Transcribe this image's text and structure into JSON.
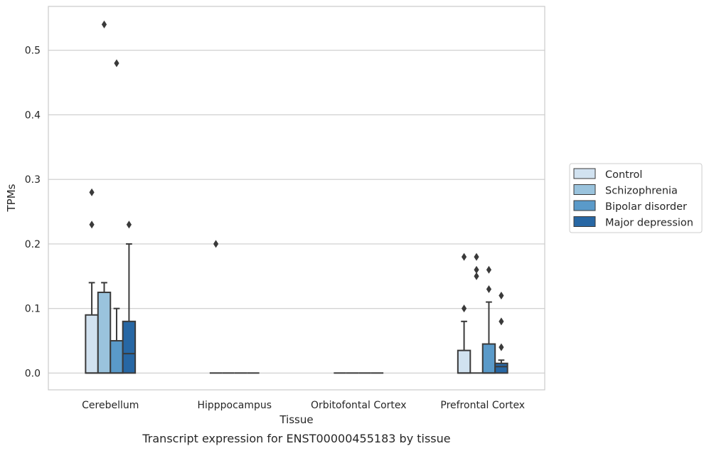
{
  "chart_data": {
    "type": "box",
    "title": "",
    "caption": "Transcript expression for ENST00000455183 by tissue",
    "xlabel": "Tissue",
    "ylabel": "TPMs",
    "ylim": [
      -0.026,
      0.568
    ],
    "yticks": [
      0.0,
      0.1,
      0.2,
      0.3,
      0.4,
      0.5
    ],
    "ytick_labels": [
      "0.0",
      "0.1",
      "0.2",
      "0.3",
      "0.4",
      "0.5"
    ],
    "grid": "horizontal",
    "legend_position": "right",
    "categories": [
      "Cerebellum",
      "Hipppocampus",
      "Orbitofontal Cortex",
      "Prefrontal Cortex"
    ],
    "series": [
      {
        "name": "Control",
        "color": "#d1e2f0",
        "boxes": [
          {
            "q1": 0.0,
            "median": 0.0,
            "q3": 0.09,
            "whisker_low": 0.0,
            "whisker_high": 0.14,
            "outliers": [
              0.23,
              0.28
            ]
          },
          {
            "q1": 0.0,
            "median": 0.0,
            "q3": 0.0,
            "whisker_low": 0.0,
            "whisker_high": 0.0,
            "outliers": [
              0.2
            ]
          },
          {
            "q1": 0.0,
            "median": 0.0,
            "q3": 0.0,
            "whisker_low": 0.0,
            "whisker_high": 0.0,
            "outliers": []
          },
          {
            "q1": 0.0,
            "median": 0.0,
            "q3": 0.035,
            "whisker_low": 0.0,
            "whisker_high": 0.08,
            "outliers": [
              0.1,
              0.18
            ]
          }
        ]
      },
      {
        "name": "Schizophrenia",
        "color": "#9ac3dd",
        "boxes": [
          {
            "q1": 0.0,
            "median": 0.0,
            "q3": 0.125,
            "whisker_low": 0.0,
            "whisker_high": 0.14,
            "outliers": [
              0.54
            ]
          },
          {
            "q1": 0.0,
            "median": 0.0,
            "q3": 0.0,
            "whisker_low": 0.0,
            "whisker_high": 0.0,
            "outliers": []
          },
          {
            "q1": 0.0,
            "median": 0.0,
            "q3": 0.0,
            "whisker_low": 0.0,
            "whisker_high": 0.0,
            "outliers": []
          },
          {
            "q1": 0.0,
            "median": 0.0,
            "q3": 0.0,
            "whisker_low": 0.0,
            "whisker_high": 0.0,
            "outliers": [
              0.15,
              0.16,
              0.18
            ]
          }
        ]
      },
      {
        "name": "Bipolar disorder",
        "color": "#5a9ac9",
        "boxes": [
          {
            "q1": 0.0,
            "median": 0.0,
            "q3": 0.05,
            "whisker_low": 0.0,
            "whisker_high": 0.1,
            "outliers": [
              0.48
            ]
          },
          {
            "q1": 0.0,
            "median": 0.0,
            "q3": 0.0,
            "whisker_low": 0.0,
            "whisker_high": 0.0,
            "outliers": []
          },
          {
            "q1": 0.0,
            "median": 0.0,
            "q3": 0.0,
            "whisker_low": 0.0,
            "whisker_high": 0.0,
            "outliers": []
          },
          {
            "q1": 0.0,
            "median": 0.0,
            "q3": 0.045,
            "whisker_low": 0.0,
            "whisker_high": 0.11,
            "outliers": [
              0.13,
              0.16
            ]
          }
        ]
      },
      {
        "name": "Major depression",
        "color": "#2767a4",
        "boxes": [
          {
            "q1": 0.0,
            "median": 0.03,
            "q3": 0.08,
            "whisker_low": 0.0,
            "whisker_high": 0.2,
            "outliers": [
              0.23
            ]
          },
          {
            "q1": 0.0,
            "median": 0.0,
            "q3": 0.0,
            "whisker_low": 0.0,
            "whisker_high": 0.0,
            "outliers": []
          },
          {
            "q1": 0.0,
            "median": 0.0,
            "q3": 0.0,
            "whisker_low": 0.0,
            "whisker_high": 0.0,
            "outliers": []
          },
          {
            "q1": 0.0,
            "median": 0.01,
            "q3": 0.015,
            "whisker_low": 0.0,
            "whisker_high": 0.02,
            "outliers": [
              0.04,
              0.08,
              0.12
            ]
          }
        ]
      }
    ]
  }
}
